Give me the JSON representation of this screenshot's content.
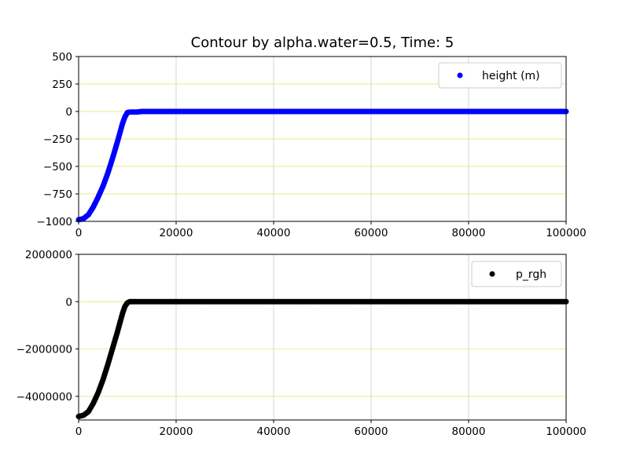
{
  "chart_data": [
    {
      "type": "scatter",
      "title": "Contour by alpha.water=0.5, Time: 5",
      "xlabel": "",
      "ylabel": "",
      "xlim": [
        0,
        100000
      ],
      "ylim": [
        -1000,
        500
      ],
      "x_ticks": [
        "0",
        "20000",
        "40000",
        "60000",
        "80000",
        "100000"
      ],
      "y_ticks": [
        "500",
        "250",
        "0",
        "−250",
        "−500",
        "−750",
        "−1000"
      ],
      "grid": true,
      "legend_position": "top-right",
      "series": [
        {
          "name": "height (m)",
          "color": "#0000ff",
          "x": [
            0,
            1000,
            2000,
            3000,
            4000,
            5000,
            6000,
            7000,
            8000,
            9000,
            9500,
            10000,
            10500,
            11000,
            12000,
            13000,
            14000,
            20000,
            40000,
            60000,
            80000,
            100000
          ],
          "y": [
            -985,
            -975,
            -940,
            -870,
            -780,
            -680,
            -560,
            -420,
            -270,
            -110,
            -50,
            -10,
            -5,
            -5,
            -5,
            0,
            0,
            0,
            0,
            0,
            0,
            0
          ]
        }
      ]
    },
    {
      "type": "scatter",
      "title": "",
      "xlabel": "",
      "ylabel": "",
      "xlim": [
        0,
        100000
      ],
      "ylim": [
        -5000000,
        2000000
      ],
      "x_ticks": [
        "0",
        "20000",
        "40000",
        "60000",
        "80000",
        "100000"
      ],
      "y_ticks": [
        "2000000",
        "0",
        "−2000000",
        "−4000000"
      ],
      "grid": true,
      "legend_position": "top-right",
      "series": [
        {
          "name": "p_rgh",
          "color": "#000000",
          "x": [
            0,
            1000,
            2000,
            3000,
            4000,
            5000,
            6000,
            7000,
            8000,
            9000,
            9500,
            10000,
            10500,
            11000,
            12000,
            14000,
            20000,
            40000,
            60000,
            80000,
            100000
          ],
          "y": [
            -4850000,
            -4800000,
            -4650000,
            -4300000,
            -3850000,
            -3300000,
            -2650000,
            -1950000,
            -1250000,
            -500000,
            -200000,
            -50000,
            0,
            0,
            0,
            0,
            0,
            0,
            0,
            0,
            0
          ]
        }
      ]
    }
  ]
}
